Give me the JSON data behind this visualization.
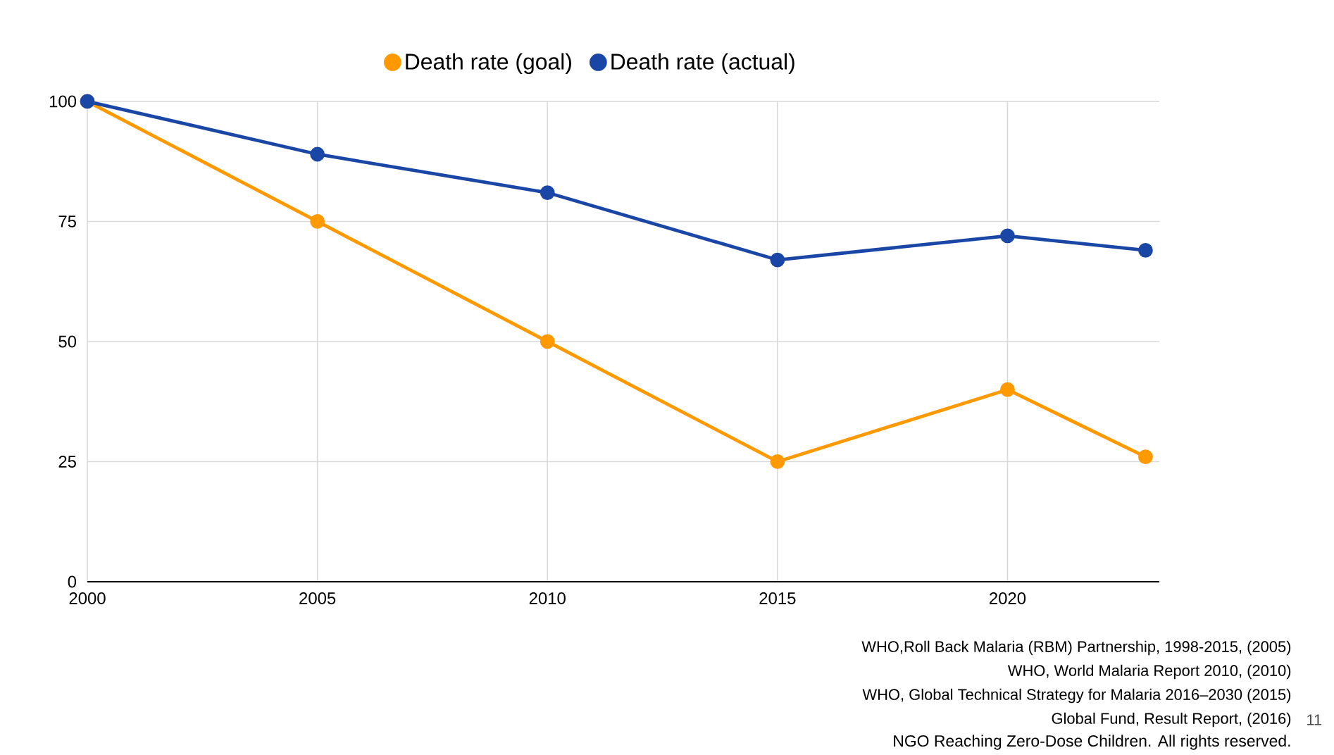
{
  "chart_data": {
    "type": "line",
    "x": [
      2000,
      2005,
      2010,
      2015,
      2020,
      2023
    ],
    "series": [
      {
        "name": "Death rate (goal)",
        "color": "#ff9900",
        "values": [
          100,
          75,
          50,
          25,
          40,
          26
        ]
      },
      {
        "name": "Death rate (actual)",
        "color": "#1a47a6",
        "values": [
          100,
          89,
          81,
          67,
          72,
          69
        ]
      }
    ],
    "xlim": [
      2000,
      2023.3
    ],
    "ylim": [
      0,
      100
    ],
    "xticks": [
      2000,
      2005,
      2010,
      2015,
      2020
    ],
    "yticks": [
      0,
      25,
      50,
      75,
      100
    ],
    "grid": true,
    "legend": "top",
    "marker": "circle",
    "line_style": "solid",
    "annotations": [
      "WHO,Roll Back Malaria (RBM) Partnership, 1998-2015, (2005)",
      "WHO, World Malaria Report 2010, (2010)",
      "WHO, Global Technical Strategy for Malaria 2016–2030 (2015)",
      "Global Fund, Result Report, (2016)",
      "11",
      "NGO Reaching Zero-Dose Children. All rights reserved."
    ]
  }
}
